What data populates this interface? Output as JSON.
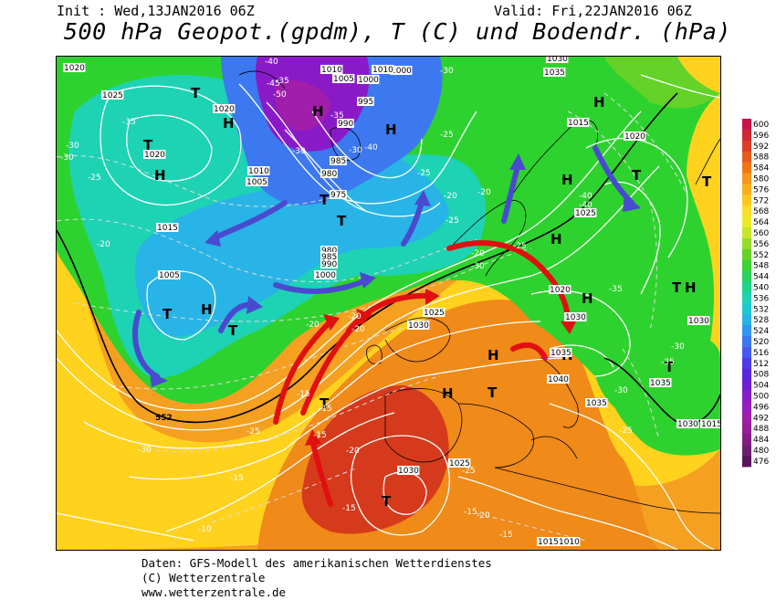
{
  "header": {
    "init": "Init : Wed,13JAN2016 06Z",
    "valid": "Valid: Fri,22JAN2016 06Z",
    "title": "500 hPa Geopot.(gpdm), T (C) und Bodendr. (hPa)"
  },
  "footer": {
    "line1": "Daten: GFS-Modell des amerikanischen Wetterdienstes",
    "line2": "(C) Wetterzentrale",
    "line3": "www.wetterzentrale.de"
  },
  "colors": {
    "purple": "#8a1ac8",
    "blue": "#2a5ae0",
    "cyan": "#28b4e8",
    "teal": "#1ed2a0",
    "green": "#2ed22e",
    "yellow": "#ffd21e",
    "orange": "#f07814",
    "red": "#d2281e",
    "arrow_blue": "#4a4ad0",
    "arrow_red": "#e01010"
  },
  "scale": {
    "values": [
      "600",
      "596",
      "592",
      "588",
      "584",
      "580",
      "576",
      "572",
      "568",
      "564",
      "560",
      "556",
      "552",
      "548",
      "544",
      "540",
      "536",
      "532",
      "528",
      "524",
      "520",
      "516",
      "512",
      "508",
      "504",
      "500",
      "496",
      "492",
      "488",
      "484",
      "480",
      "476"
    ],
    "colors": [
      "#c8144a",
      "#d22832",
      "#dc3c28",
      "#e65a1e",
      "#f07814",
      "#f5961e",
      "#faaf1e",
      "#ffc81e",
      "#ffdc28",
      "#ebeb28",
      "#c8e628",
      "#96dc28",
      "#64d228",
      "#3cd232",
      "#28d25a",
      "#1ed28c",
      "#1ed2b4",
      "#1ec8d2",
      "#28b4e6",
      "#3296f0",
      "#3c78f0",
      "#465af0",
      "#503ce6",
      "#5a28dc",
      "#6e1ed2",
      "#821ec8",
      "#961ebe",
      "#a01eaa",
      "#961e96",
      "#821e82",
      "#6e1e6e",
      "#5a145a"
    ]
  },
  "map": {
    "highs": [
      {
        "text": "H"
      },
      {
        "text": "H"
      },
      {
        "text": "H"
      },
      {
        "text": "H"
      },
      {
        "text": "H"
      },
      {
        "text": "H"
      },
      {
        "text": "H"
      },
      {
        "text": "H"
      },
      {
        "text": "H"
      },
      {
        "text": "H"
      },
      {
        "text": "H"
      },
      {
        "text": "H"
      },
      {
        "text": "H"
      }
    ],
    "lows": [
      {
        "text": "T"
      },
      {
        "text": "T"
      },
      {
        "text": "T"
      },
      {
        "text": "T"
      },
      {
        "text": "T"
      },
      {
        "text": "T"
      },
      {
        "text": "T"
      },
      {
        "text": "T"
      },
      {
        "text": "T"
      },
      {
        "text": "T"
      },
      {
        "text": "T"
      },
      {
        "text": "T"
      },
      {
        "text": "T"
      }
    ],
    "pressure_labels": [
      "1020",
      "1025",
      "1020",
      "1020",
      "1010",
      "1005",
      "1015",
      "1005",
      "1010",
      "1000",
      "1000",
      "1005",
      "1010",
      "995",
      "990",
      "985",
      "980",
      "975",
      "980",
      "985",
      "990",
      "1000",
      "1025",
      "1030",
      "1030",
      "1035",
      "1015",
      "1020",
      "1025",
      "1020",
      "1030",
      "1035",
      "1040",
      "1035",
      "1030",
      "1020",
      "1015",
      "1025",
      "1030",
      "1035",
      "1030",
      "1015",
      "1010"
    ],
    "temp_labels": [
      "-40",
      "-45",
      "-50",
      "-35",
      "-30",
      "-25",
      "-30",
      "-20",
      "-35",
      "-30",
      "-25",
      "-40",
      "-30",
      "-35",
      "-30",
      "-25",
      "-20",
      "-20",
      "-25",
      "-20",
      "-30",
      "-40",
      "-40",
      "-35",
      "-30",
      "-30",
      "-35",
      "-25",
      "-30",
      "-25",
      "-20",
      "-15",
      "-15",
      "-15",
      "-20",
      "-15",
      "-15",
      "-10",
      "-25",
      "-20",
      "-15",
      "-15",
      "-20",
      "-20",
      "-25"
    ],
    "contour_label": "552"
  }
}
